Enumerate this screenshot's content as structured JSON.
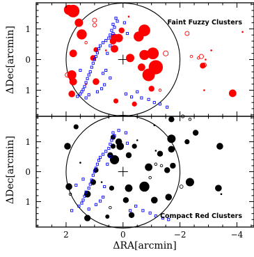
{
  "chart_data": [
    {
      "type": "scatter",
      "title": "Faint Fuzzy Clusters",
      "xlabel": "",
      "ylabel": "ΔDec[arcmin]",
      "xlim": [
        3.05,
        -4.6
      ],
      "ylim": [
        -1.85,
        1.85
      ],
      "xticks": [
        2,
        0,
        -2,
        -4
      ],
      "yticks": [
        1,
        0,
        -1
      ],
      "ytick_labels": [
        "1",
        "0",
        "1"
      ],
      "center_marker": [
        0,
        0
      ],
      "circle_radius_arcmin": 2.0,
      "colors": {
        "clusters": "#ff0000",
        "sources": "#0000ff",
        "circle": "#000000"
      },
      "series": [
        {
          "style": "filled-circle",
          "points": [
            {
              "x": 1.9,
              "y": 1.62,
              "s": 0.6
            },
            {
              "x": 1.75,
              "y": 1.58,
              "s": 0.75
            },
            {
              "x": 1.55,
              "y": 1.2,
              "s": 0.5
            },
            {
              "x": 1.45,
              "y": 0.82,
              "s": 0.6
            },
            {
              "x": 1.75,
              "y": 0.2,
              "s": 0.45
            },
            {
              "x": 1.8,
              "y": -0.5,
              "s": 0.55
            },
            {
              "x": 1.75,
              "y": -0.72,
              "s": 0.45
            },
            {
              "x": 1.8,
              "y": -1.12,
              "s": 0.4
            },
            {
              "x": 0.95,
              "y": -0.72,
              "s": 0.4
            },
            {
              "x": 1.05,
              "y": 0.05,
              "s": 0.35
            },
            {
              "x": 0.95,
              "y": 0.32,
              "s": 0.3
            },
            {
              "x": 0.3,
              "y": 0.35,
              "s": 0.45
            },
            {
              "x": 0.35,
              "y": 0.6,
              "s": 0.4
            },
            {
              "x": 0.3,
              "y": 0.72,
              "s": 0.45
            },
            {
              "x": 0.15,
              "y": 0.7,
              "s": 0.5
            },
            {
              "x": 0.05,
              "y": 0.95,
              "s": 0.35
            },
            {
              "x": -0.55,
              "y": 0.75,
              "s": 0.6
            },
            {
              "x": -0.75,
              "y": 0.95,
              "s": 0.7
            },
            {
              "x": -0.25,
              "y": 0.05,
              "s": 0.5
            },
            {
              "x": -0.75,
              "y": 0.15,
              "s": 0.6
            },
            {
              "x": -0.65,
              "y": -0.25,
              "s": 0.45
            },
            {
              "x": -1.05,
              "y": 0.2,
              "s": 0.7
            },
            {
              "x": -1.15,
              "y": -0.25,
              "s": 0.85
            },
            {
              "x": -0.9,
              "y": -0.5,
              "s": 0.75
            },
            {
              "x": -1.0,
              "y": -0.95,
              "s": 0.35
            },
            {
              "x": -0.4,
              "y": -1.45,
              "s": 0.3
            },
            {
              "x": -2.8,
              "y": -0.2,
              "s": 0.35
            },
            {
              "x": -3.85,
              "y": -1.1,
              "s": 0.45
            },
            {
              "x": 0.25,
              "y": -1.35,
              "s": 0.3
            }
          ]
        },
        {
          "style": "open-circle",
          "points": [
            {
              "x": 1.0,
              "y": 1.28,
              "s": 0.25
            },
            {
              "x": 1.0,
              "y": 1.12,
              "s": 0.22
            },
            {
              "x": 1.95,
              "y": -0.5,
              "s": 0.28
            },
            {
              "x": -1.5,
              "y": 0.2,
              "s": 0.3
            },
            {
              "x": -2.25,
              "y": 0.85,
              "s": 0.25
            },
            {
              "x": -2.75,
              "y": 0.1,
              "s": 0.26
            },
            {
              "x": -2.85,
              "y": -0.18,
              "s": 0.26
            },
            {
              "x": -2.4,
              "y": 0.1,
              "s": 0.12
            },
            {
              "x": -2.65,
              "y": 0.05,
              "s": 0.1
            },
            {
              "x": 1.3,
              "y": 0.55,
              "s": 0.12
            },
            {
              "x": -1.3,
              "y": -1.0,
              "s": 0.12
            }
          ]
        },
        {
          "style": "dot",
          "points": [
            {
              "x": -4.2,
              "y": 0.9
            },
            {
              "x": -3.1,
              "y": 0.3
            },
            {
              "x": -2.9,
              "y": 0.0
            },
            {
              "x": -2.85,
              "y": -1.0
            },
            {
              "x": 0.6,
              "y": 0.3
            },
            {
              "x": 1.3,
              "y": -0.8
            },
            {
              "x": -0.2,
              "y": 1.4
            }
          ]
        },
        {
          "style": "small-blue-square",
          "points": [
            {
              "x": 0.35,
              "y": 1.15
            },
            {
              "x": 0.3,
              "y": 1.05
            },
            {
              "x": 0.4,
              "y": 0.95
            },
            {
              "x": 0.35,
              "y": 0.85
            },
            {
              "x": 0.45,
              "y": 0.8
            },
            {
              "x": 0.5,
              "y": 0.7
            },
            {
              "x": 0.6,
              "y": 0.62
            },
            {
              "x": 0.7,
              "y": 0.55
            },
            {
              "x": 0.8,
              "y": 0.45
            },
            {
              "x": 0.85,
              "y": 0.35
            },
            {
              "x": 0.9,
              "y": 0.22
            },
            {
              "x": 0.95,
              "y": 0.1
            },
            {
              "x": 1.0,
              "y": 0.0
            },
            {
              "x": 1.05,
              "y": -0.12
            },
            {
              "x": 1.1,
              "y": -0.25
            },
            {
              "x": 1.15,
              "y": -0.4
            },
            {
              "x": 1.2,
              "y": -0.5
            },
            {
              "x": 1.25,
              "y": -0.62
            },
            {
              "x": 1.3,
              "y": -0.75
            },
            {
              "x": 1.35,
              "y": -0.88
            },
            {
              "x": 1.4,
              "y": -0.98
            },
            {
              "x": 1.45,
              "y": -1.05
            },
            {
              "x": 1.5,
              "y": -1.12
            },
            {
              "x": 1.6,
              "y": -1.2
            },
            {
              "x": 1.2,
              "y": -1.15
            },
            {
              "x": 1.3,
              "y": -1.25
            },
            {
              "x": 0.9,
              "y": -1.05
            },
            {
              "x": 0.75,
              "y": -0.95
            },
            {
              "x": 0.65,
              "y": -0.82
            },
            {
              "x": 0.7,
              "y": -0.45
            },
            {
              "x": 0.6,
              "y": -0.35
            },
            {
              "x": 0.55,
              "y": 0.2
            },
            {
              "x": 0.45,
              "y": 0.45
            },
            {
              "x": 0.2,
              "y": 1.25
            },
            {
              "x": 0.25,
              "y": 1.35
            },
            {
              "x": -0.05,
              "y": 1.2
            },
            {
              "x": -0.15,
              "y": 0.85
            },
            {
              "x": -0.5,
              "y": -1.05
            },
            {
              "x": -0.65,
              "y": -1.25
            },
            {
              "x": -0.9,
              "y": -1.3
            },
            {
              "x": -1.1,
              "y": -1.4
            },
            {
              "x": -1.3,
              "y": -1.45
            },
            {
              "x": -1.55,
              "y": -1.55
            },
            {
              "x": -0.3,
              "y": -1.22
            },
            {
              "x": -0.1,
              "y": -1.12
            },
            {
              "x": 0.45,
              "y": -0.6
            },
            {
              "x": 1.5,
              "y": -0.35
            }
          ]
        }
      ]
    },
    {
      "type": "scatter",
      "title": "Compact Red Clusters",
      "xlabel": "ΔRA[arcmin]",
      "ylabel": "ΔDec[arcmin]",
      "xlim": [
        3.05,
        -4.6
      ],
      "ylim": [
        -1.85,
        1.85
      ],
      "xticks": [
        2,
        0,
        -2,
        -4
      ],
      "xtick_labels": [
        "2",
        "0",
        "−2",
        "−4"
      ],
      "yticks": [
        1,
        0,
        -1
      ],
      "ytick_labels": [
        "1",
        "0",
        "1"
      ],
      "center_marker": [
        0,
        0
      ],
      "circle_radius_arcmin": 2.0,
      "colors": {
        "clusters": "#000000",
        "sources": "#0000ff",
        "circle": "#000000"
      },
      "series": [
        {
          "style": "filled-circle",
          "points": [
            {
              "x": 1.65,
              "y": 1.5,
              "s": 0.3
            },
            {
              "x": 1.95,
              "y": 0.85,
              "s": 0.4
            },
            {
              "x": 1.9,
              "y": -0.5,
              "s": 0.4
            },
            {
              "x": 1.25,
              "y": -0.75,
              "s": 0.4
            },
            {
              "x": 1.05,
              "y": -0.35,
              "s": 0.35
            },
            {
              "x": 0.95,
              "y": 0.05,
              "s": 0.3
            },
            {
              "x": 1.25,
              "y": -1.55,
              "s": 0.38
            },
            {
              "x": 0.45,
              "y": 0.55,
              "s": 0.35
            },
            {
              "x": 0.35,
              "y": 0.85,
              "s": 0.3
            },
            {
              "x": 0.35,
              "y": 1.15,
              "s": 0.3
            },
            {
              "x": 0.15,
              "y": 1.0,
              "s": 0.4
            },
            {
              "x": 0.1,
              "y": 0.85,
              "s": 0.45
            },
            {
              "x": 0.3,
              "y": 0.4,
              "s": 0.55
            },
            {
              "x": -0.2,
              "y": 0.55,
              "s": 0.35
            },
            {
              "x": -0.2,
              "y": -0.55,
              "s": 0.45
            },
            {
              "x": -0.1,
              "y": -0.95,
              "s": 0.35
            },
            {
              "x": 0.4,
              "y": -0.55,
              "s": 0.3
            },
            {
              "x": -0.9,
              "y": 0.15,
              "s": 0.45
            },
            {
              "x": -0.75,
              "y": -0.5,
              "s": 0.6
            },
            {
              "x": -0.3,
              "y": -1.45,
              "s": 0.35
            },
            {
              "x": -1.3,
              "y": 0.6,
              "s": 0.35
            },
            {
              "x": -1.55,
              "y": 0.05,
              "s": 0.35
            },
            {
              "x": -1.7,
              "y": 0.75,
              "s": 0.4
            },
            {
              "x": -1.75,
              "y": 0.2,
              "s": 0.35
            },
            {
              "x": -1.7,
              "y": 1.1,
              "s": 0.5
            },
            {
              "x": -1.6,
              "y": -0.85,
              "s": 0.4
            },
            {
              "x": -1.1,
              "y": -0.95,
              "s": 0.4
            },
            {
              "x": -2.35,
              "y": -0.35,
              "s": 0.5
            },
            {
              "x": -2.55,
              "y": 1.3,
              "s": 0.35
            },
            {
              "x": -1.7,
              "y": 1.75,
              "s": 0.35
            },
            {
              "x": -3.4,
              "y": 0.85,
              "s": 0.4
            },
            {
              "x": -3.35,
              "y": -0.55,
              "s": 0.4
            },
            {
              "x": -2.25,
              "y": 1.0,
              "s": 0.3
            },
            {
              "x": -0.4,
              "y": 0.85,
              "s": 0.3
            },
            {
              "x": 0.55,
              "y": -1.5,
              "s": 0.25
            }
          ]
        },
        {
          "style": "open-circle",
          "points": [
            {
              "x": -2.1,
              "y": 1.85,
              "s": 0.18
            },
            {
              "x": -2.35,
              "y": 1.75,
              "s": 0.15
            },
            {
              "x": -2.05,
              "y": -0.5,
              "s": 0.2
            },
            {
              "x": -1.15,
              "y": 0.25,
              "s": 0.12
            },
            {
              "x": -1.35,
              "y": 0.2,
              "s": 0.12
            },
            {
              "x": 1.85,
              "y": -0.75,
              "s": 0.12
            },
            {
              "x": 0.45,
              "y": -1.2,
              "s": 0.12
            },
            {
              "x": -0.95,
              "y": -0.2,
              "s": 0.14
            }
          ]
        },
        {
          "style": "dot",
          "points": [
            {
              "x": -1.1,
              "y": 1.55
            },
            {
              "x": -3.45,
              "y": -0.75
            },
            {
              "x": -1.15,
              "y": 0.7
            },
            {
              "x": 0.75,
              "y": -0.35
            },
            {
              "x": -0.5,
              "y": 1.05
            },
            {
              "x": 1.5,
              "y": 0.3
            }
          ]
        },
        {
          "style": "small-blue-square",
          "points": [
            {
              "x": 0.35,
              "y": 1.3
            },
            {
              "x": 0.3,
              "y": 1.2
            },
            {
              "x": 0.4,
              "y": 1.05
            },
            {
              "x": 0.45,
              "y": 0.92
            },
            {
              "x": 0.5,
              "y": 0.78
            },
            {
              "x": 0.6,
              "y": 0.68
            },
            {
              "x": 0.7,
              "y": 0.58
            },
            {
              "x": 0.8,
              "y": 0.48
            },
            {
              "x": 0.85,
              "y": 0.38
            },
            {
              "x": 0.9,
              "y": 0.25
            },
            {
              "x": 0.95,
              "y": 0.12
            },
            {
              "x": 1.0,
              "y": 0.0
            },
            {
              "x": 1.05,
              "y": -0.12
            },
            {
              "x": 1.1,
              "y": -0.28
            },
            {
              "x": 1.15,
              "y": -0.42
            },
            {
              "x": 1.2,
              "y": -0.55
            },
            {
              "x": 1.3,
              "y": -0.68
            },
            {
              "x": 1.35,
              "y": -0.82
            },
            {
              "x": 1.4,
              "y": -0.95
            },
            {
              "x": 1.45,
              "y": -1.05
            },
            {
              "x": 1.55,
              "y": -1.15
            },
            {
              "x": 1.2,
              "y": -1.25
            },
            {
              "x": 0.95,
              "y": -1.1
            },
            {
              "x": 0.8,
              "y": -0.98
            },
            {
              "x": 0.7,
              "y": -0.85
            },
            {
              "x": 0.65,
              "y": -0.5
            },
            {
              "x": 0.55,
              "y": 0.25
            },
            {
              "x": 0.45,
              "y": 0.5
            },
            {
              "x": 0.15,
              "y": 1.38
            },
            {
              "x": -0.1,
              "y": 1.3
            },
            {
              "x": -0.15,
              "y": 0.95
            },
            {
              "x": -0.45,
              "y": -1.15
            },
            {
              "x": -0.7,
              "y": -1.3
            },
            {
              "x": -0.95,
              "y": -1.38
            },
            {
              "x": -1.15,
              "y": -1.48
            },
            {
              "x": -1.4,
              "y": -1.55
            },
            {
              "x": -1.6,
              "y": -1.6
            },
            {
              "x": -0.25,
              "y": -1.3
            },
            {
              "x": 1.4,
              "y": -0.25
            },
            {
              "x": 1.65,
              "y": -0.45
            },
            {
              "x": 1.8,
              "y": -1.3
            }
          ]
        }
      ]
    }
  ]
}
